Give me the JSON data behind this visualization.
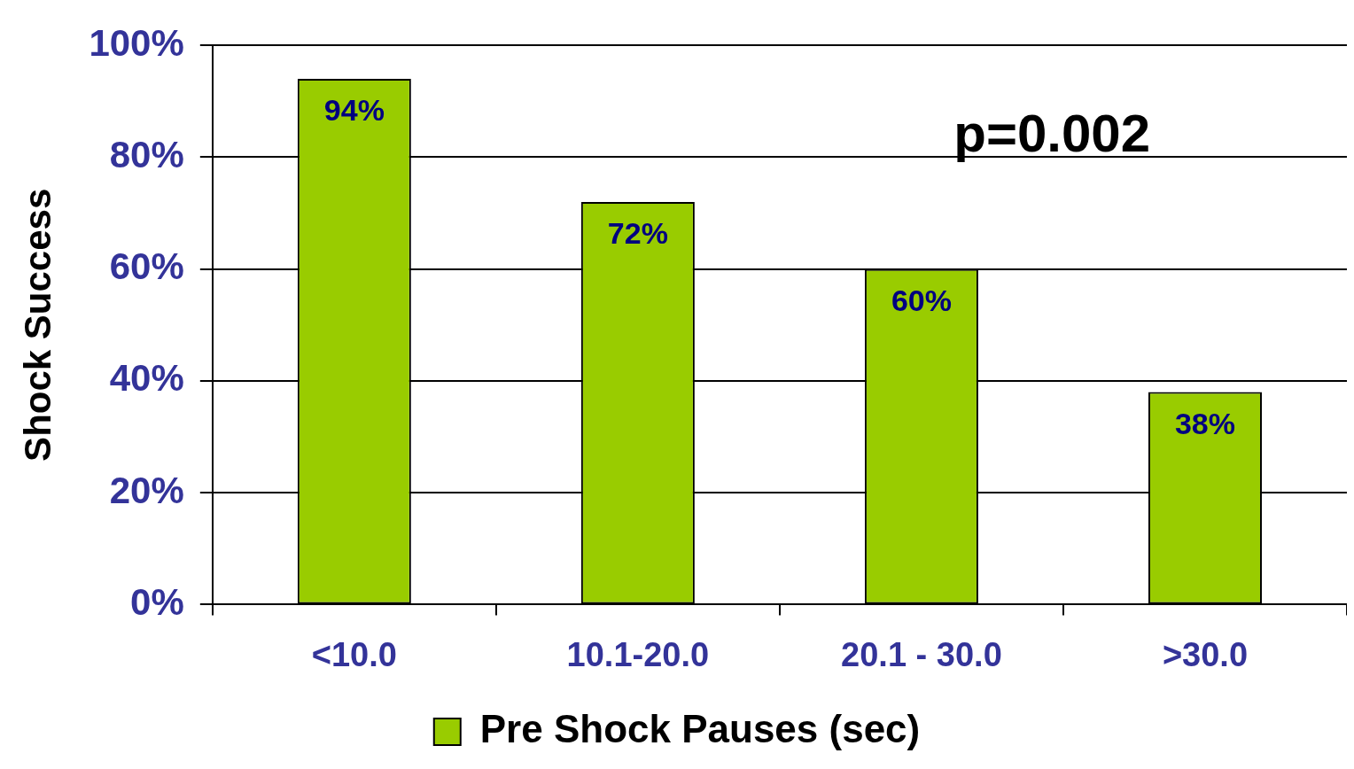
{
  "chart_data": {
    "type": "bar",
    "ylabel": "Shock Success",
    "categories": [
      "<10.0",
      "10.1-20.0",
      "20.1 - 30.0",
      ">30.0"
    ],
    "series": [
      {
        "name": "Pre Shock Pauses (sec)",
        "color": "#99cc00",
        "values": [
          94,
          72,
          60,
          38
        ],
        "value_labels": [
          "94%",
          "72%",
          "60%",
          "38%"
        ]
      }
    ],
    "ylim": [
      0,
      100
    ],
    "yticks": [
      {
        "value": 0,
        "label": "0%"
      },
      {
        "value": 20,
        "label": "20%"
      },
      {
        "value": 40,
        "label": "40%"
      },
      {
        "value": 60,
        "label": "60%"
      },
      {
        "value": 80,
        "label": "80%"
      },
      {
        "value": 100,
        "label": "100%"
      }
    ],
    "grid": "y",
    "legend": "bottom",
    "annotations": [
      "p=0.002"
    ]
  }
}
